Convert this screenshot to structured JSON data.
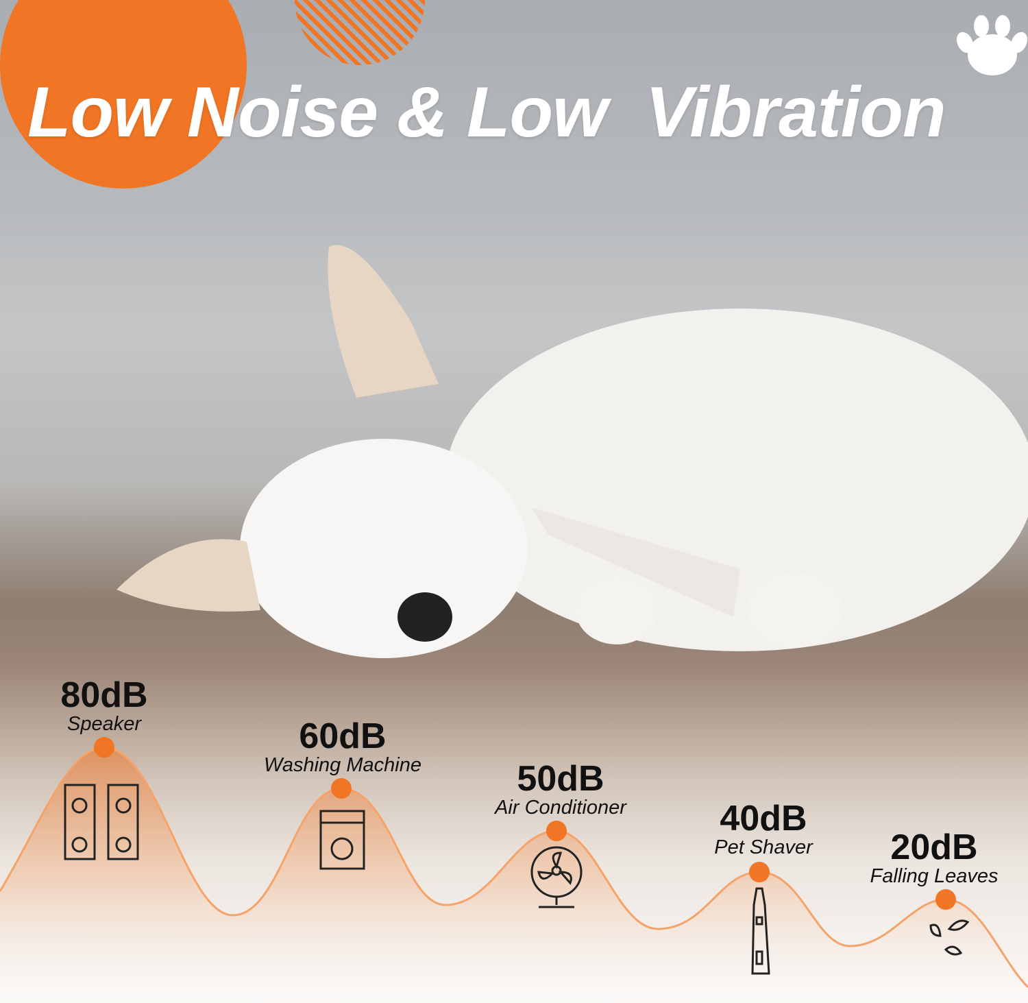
{
  "title": "Low Noise & Low  Vibration",
  "colors": {
    "accent": "#f07524",
    "text": "#111111",
    "title": "#ffffff"
  },
  "icons": [
    "paw-icon",
    "speaker-icon",
    "washing-machine-icon",
    "fan-icon",
    "pet-shaver-icon",
    "falling-leaves-icon"
  ],
  "levels": [
    {
      "db": "80dB",
      "source": "Speaker"
    },
    {
      "db": "60dB",
      "source": "Washing Machine"
    },
    {
      "db": "50dB",
      "source": "Air Conditioner"
    },
    {
      "db": "40dB",
      "source": "Pet Shaver"
    },
    {
      "db": "20dB",
      "source": "Falling Leaves"
    }
  ]
}
